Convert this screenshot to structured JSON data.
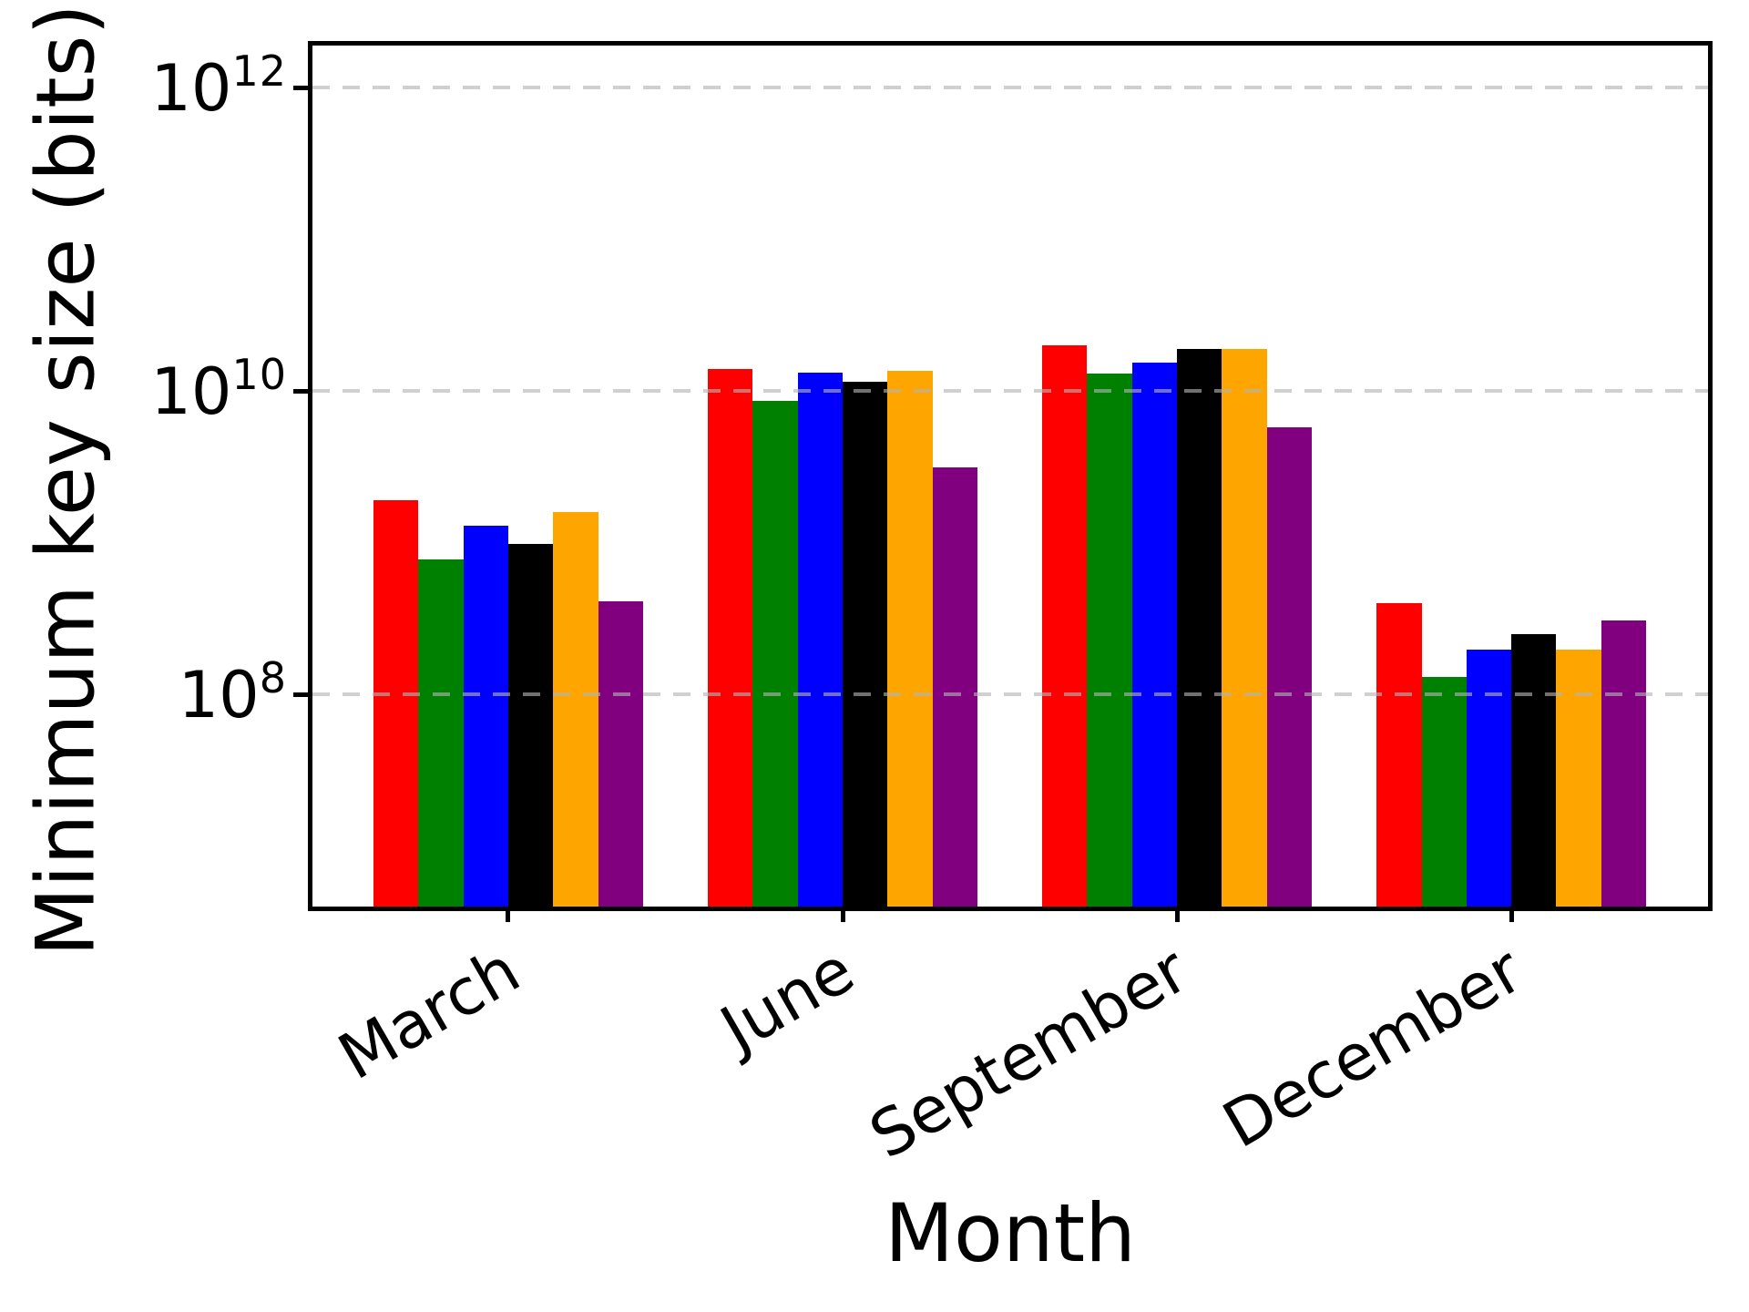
{
  "chart_data": {
    "type": "bar",
    "title": "",
    "xlabel": "Month",
    "ylabel": "Minimum key size (bits)",
    "categories": [
      "March",
      "June",
      "September",
      "December"
    ],
    "series": [
      {
        "name": "red",
        "color": "#ff0000",
        "values": [
          1920000000.0,
          14000000000.0,
          20000000000.0,
          400000000.0
        ]
      },
      {
        "name": "green",
        "color": "#008000",
        "values": [
          780000000.0,
          8650000000.0,
          13000000000.0,
          130000000.0
        ]
      },
      {
        "name": "blue",
        "color": "#0000ff",
        "values": [
          1290000000.0,
          13300000000.0,
          15500000000.0,
          197000000.0
        ]
      },
      {
        "name": "black",
        "color": "#000000",
        "values": [
          990000000.0,
          11600000000.0,
          19100000000.0,
          250000000.0
        ]
      },
      {
        "name": "orange",
        "color": "#ffa500",
        "values": [
          1600000000.0,
          13700000000.0,
          19100000000.0,
          198000000.0
        ]
      },
      {
        "name": "purple",
        "color": "#800080",
        "values": [
          410000000.0,
          3160000000.0,
          5800000000.0,
          310000000.0
        ]
      }
    ],
    "yscale": "log",
    "ylim": [
      4000000.0,
      1900000000000.0
    ],
    "yticks": [
      {
        "base": "10",
        "exp": "8"
      },
      {
        "base": "10",
        "exp": "10"
      },
      {
        "base": "10",
        "exp": "12"
      }
    ],
    "grid": "horizontal dashed, drawn above bars",
    "legend": "none"
  }
}
